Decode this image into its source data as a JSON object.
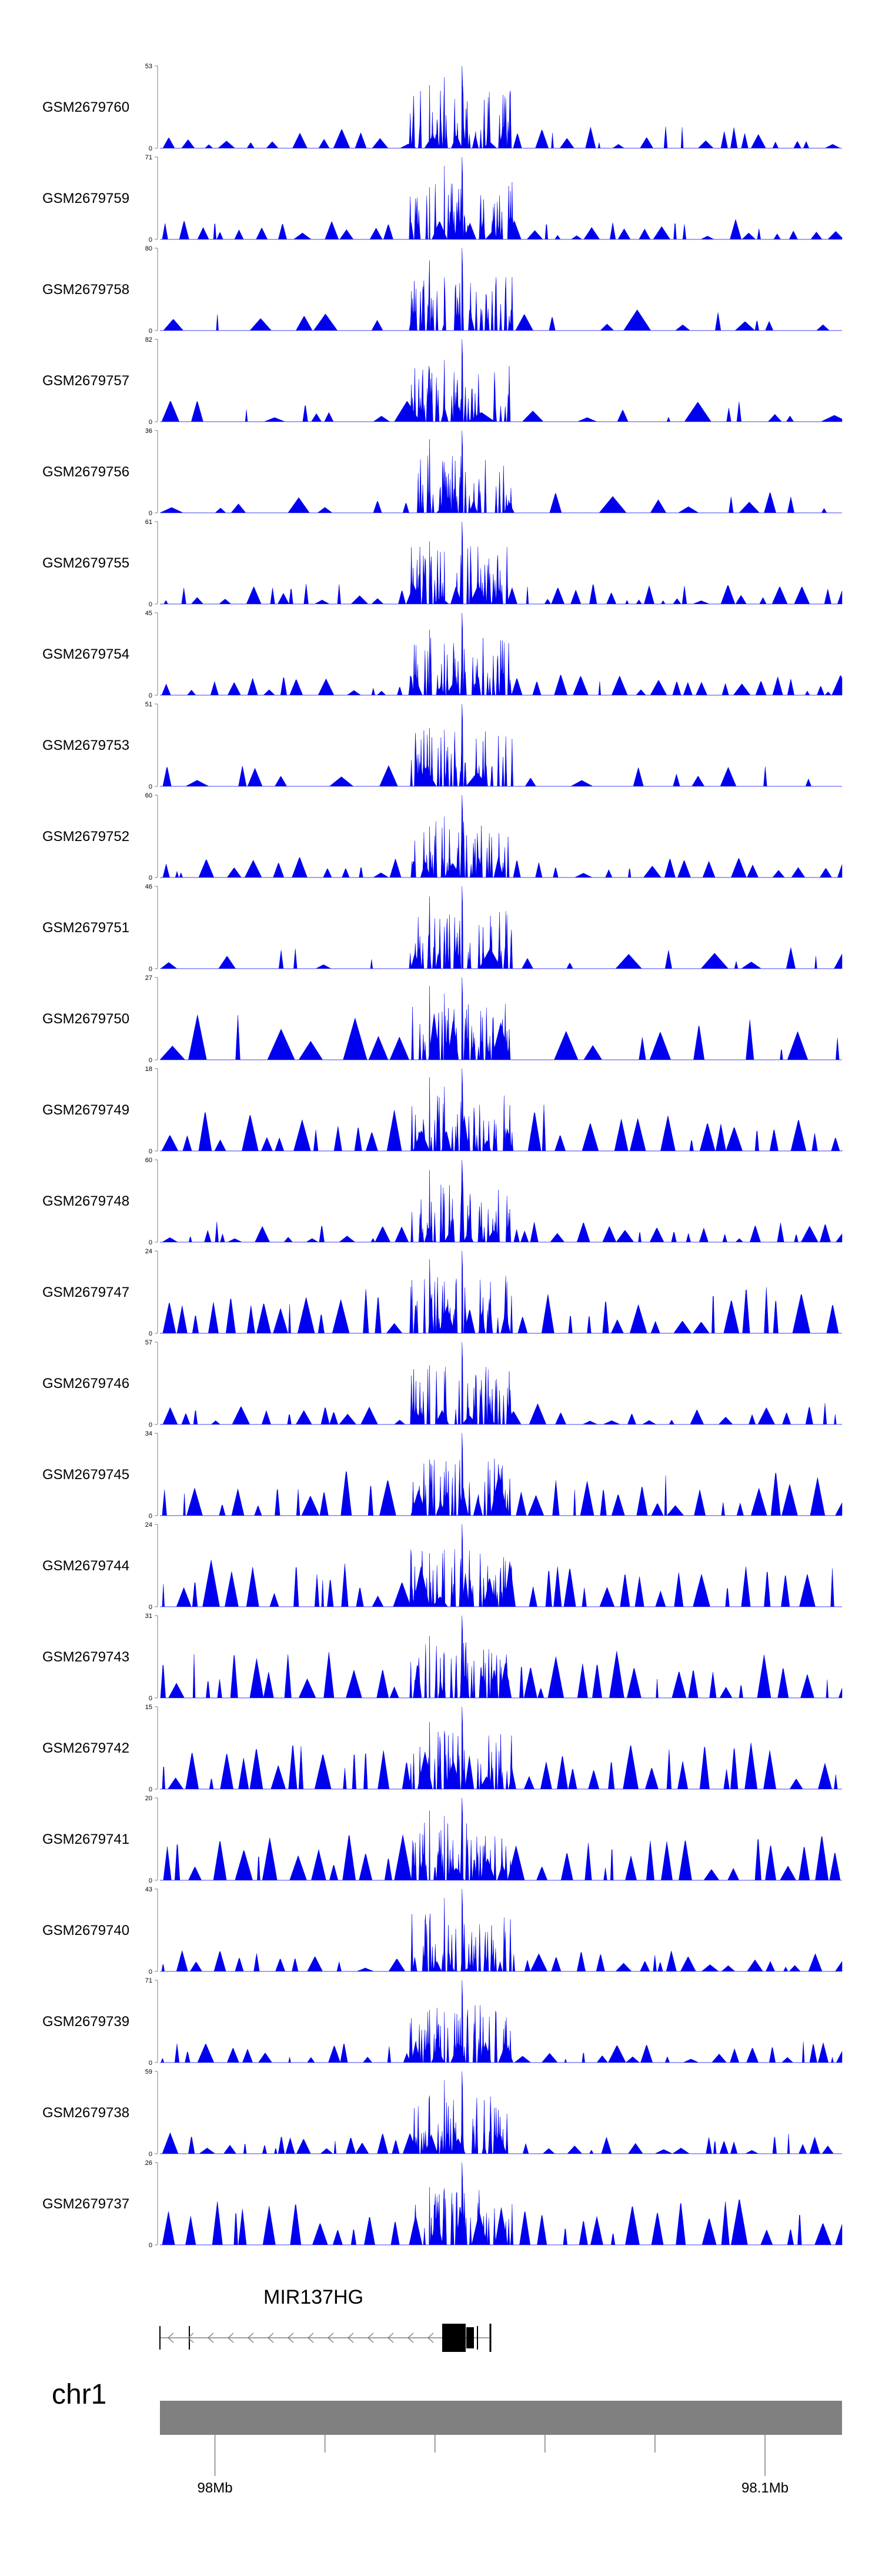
{
  "chart_data": {
    "type": "area",
    "colors": {
      "signal": "#0000ee",
      "ideogram": "#808080",
      "gene": "#000000",
      "axis": "#808080"
    },
    "tracks": [
      {
        "name": "GSM2679760",
        "ymax": 53
      },
      {
        "name": "GSM2679759",
        "ymax": 71
      },
      {
        "name": "GSM2679758",
        "ymax": 80
      },
      {
        "name": "GSM2679757",
        "ymax": 82
      },
      {
        "name": "GSM2679756",
        "ymax": 36
      },
      {
        "name": "GSM2679755",
        "ymax": 61
      },
      {
        "name": "GSM2679754",
        "ymax": 45
      },
      {
        "name": "GSM2679753",
        "ymax": 51
      },
      {
        "name": "GSM2679752",
        "ymax": 60
      },
      {
        "name": "GSM2679751",
        "ymax": 46
      },
      {
        "name": "GSM2679750",
        "ymax": 27
      },
      {
        "name": "GSM2679749",
        "ymax": 18
      },
      {
        "name": "GSM2679748",
        "ymax": 60
      },
      {
        "name": "GSM2679747",
        "ymax": 24
      },
      {
        "name": "GSM2679746",
        "ymax": 57
      },
      {
        "name": "GSM2679745",
        "ymax": 34
      },
      {
        "name": "GSM2679744",
        "ymax": 24
      },
      {
        "name": "GSM2679743",
        "ymax": 31
      },
      {
        "name": "GSM2679742",
        "ymax": 15
      },
      {
        "name": "GSM2679741",
        "ymax": 20
      },
      {
        "name": "GSM2679740",
        "ymax": 43
      },
      {
        "name": "GSM2679739",
        "ymax": 71
      },
      {
        "name": "GSM2679738",
        "ymax": 59
      },
      {
        "name": "GSM2679737",
        "ymax": 26
      }
    ],
    "y_min_label": "0",
    "gene": {
      "name": "MIR137HG"
    },
    "chromosome": "chr1",
    "x_ticks": [
      {
        "label": "98Mb",
        "value": 98.0
      },
      {
        "label": "98.1Mb",
        "value": 98.1
      }
    ],
    "x_minor_tick_values": [
      98.02,
      98.04,
      98.06,
      98.08
    ],
    "xlim": [
      97.99,
      98.114
    ]
  }
}
